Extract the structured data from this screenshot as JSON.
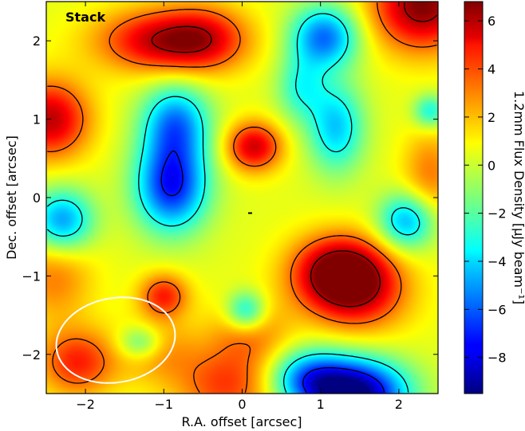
{
  "chart_data": {
    "type": "heatmap",
    "panel_label": "Stack",
    "xlabel": "R.A. offset [arcsec]",
    "ylabel": "Dec. offset [arcsec]",
    "xlim": [
      -2.5,
      2.5
    ],
    "ylim": [
      -2.5,
      2.5
    ],
    "xticks": [
      -2,
      -1,
      0,
      1,
      2
    ],
    "xtick_labels": [
      "−2",
      "−1",
      "0",
      "1",
      "2"
    ],
    "yticks": [
      -2,
      -1,
      0,
      1,
      2
    ],
    "ytick_labels": [
      "−2",
      "−1",
      "0",
      "1",
      "2"
    ],
    "colorbar": {
      "label": "1.2mm Flux Density [μJy beam⁻¹]",
      "range": [
        -9.5,
        6.8
      ],
      "colormap": "jet",
      "ticks": [
        6,
        4,
        2,
        0,
        -2,
        -4,
        -6,
        -8
      ],
      "tick_labels": [
        "6",
        "4",
        "2",
        "0",
        "−2",
        "−4",
        "−6",
        "−8"
      ]
    },
    "field_components": [
      {
        "x": -0.95,
        "y": 2.0,
        "sx": 0.6,
        "sy": 0.28,
        "amp": 5.8
      },
      {
        "x": -0.45,
        "y": 2.05,
        "sx": 0.35,
        "sy": 0.3,
        "amp": 2.0
      },
      {
        "x": -2.45,
        "y": 1.0,
        "sx": 0.35,
        "sy": 0.35,
        "amp": 5.5
      },
      {
        "x": 2.3,
        "y": 2.45,
        "sx": 0.45,
        "sy": 0.4,
        "amp": 6.5
      },
      {
        "x": 0.15,
        "y": 0.65,
        "sx": 0.25,
        "sy": 0.22,
        "amp": 5.2
      },
      {
        "x": 1.25,
        "y": -0.95,
        "sx": 0.42,
        "sy": 0.32,
        "amp": 7.0
      },
      {
        "x": 1.5,
        "y": -1.25,
        "sx": 0.45,
        "sy": 0.35,
        "amp": 3.5
      },
      {
        "x": -1.0,
        "y": -1.25,
        "sx": 0.22,
        "sy": 0.2,
        "amp": 4.0
      },
      {
        "x": -2.1,
        "y": -2.1,
        "sx": 0.35,
        "sy": 0.3,
        "amp": 4.0
      },
      {
        "x": -0.2,
        "y": -2.4,
        "sx": 0.45,
        "sy": 0.35,
        "amp": 3.5
      },
      {
        "x": -2.4,
        "y": -1.0,
        "sx": 0.35,
        "sy": 0.4,
        "amp": 2.5
      },
      {
        "x": 2.4,
        "y": 0.3,
        "sx": 0.25,
        "sy": 0.4,
        "amp": 2.5
      },
      {
        "x": 0.1,
        "y": -1.7,
        "sx": 0.35,
        "sy": 0.3,
        "amp": 2.5
      },
      {
        "x": -1.05,
        "y": -1.95,
        "sx": 0.35,
        "sy": 0.3,
        "amp": 2.0
      },
      {
        "x": -0.9,
        "y": 0.15,
        "sx": 0.32,
        "sy": 0.4,
        "amp": -7.5
      },
      {
        "x": -0.85,
        "y": 0.95,
        "sx": 0.3,
        "sy": 0.35,
        "amp": -5.5
      },
      {
        "x": 1.05,
        "y": 2.05,
        "sx": 0.3,
        "sy": 0.28,
        "amp": -6.0
      },
      {
        "x": 1.2,
        "y": 0.9,
        "sx": 0.25,
        "sy": 0.4,
        "amp": -4.5
      },
      {
        "x": 0.75,
        "y": 1.4,
        "sx": 0.22,
        "sy": 0.3,
        "amp": -3.0
      },
      {
        "x": 1.45,
        "y": -2.5,
        "sx": 0.45,
        "sy": 0.3,
        "amp": -10.0
      },
      {
        "x": 0.85,
        "y": -2.3,
        "sx": 0.35,
        "sy": 0.25,
        "amp": -5.0
      },
      {
        "x": -2.3,
        "y": -0.3,
        "sx": 0.28,
        "sy": 0.28,
        "amp": -5.5
      },
      {
        "x": 2.1,
        "y": -0.3,
        "sx": 0.25,
        "sy": 0.25,
        "amp": -5.0
      },
      {
        "x": 0.05,
        "y": -1.45,
        "sx": 0.18,
        "sy": 0.18,
        "amp": -4.5
      },
      {
        "x": -1.3,
        "y": -1.85,
        "sx": 0.2,
        "sy": 0.15,
        "amp": -3.0
      },
      {
        "x": 2.4,
        "y": 1.1,
        "sx": 0.15,
        "sy": 0.15,
        "amp": -3.5
      }
    ],
    "background_level": 0.3
  }
}
